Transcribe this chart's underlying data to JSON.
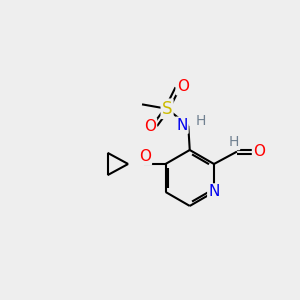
{
  "bg_color": "#eeeeee",
  "bond_color": "#000000",
  "atom_colors": {
    "N": "#0000ee",
    "O": "#ff0000",
    "S": "#ccbb00",
    "H_gray": "#708090",
    "C": "#000000"
  },
  "font_size_atom": 10,
  "fig_size": [
    3.0,
    3.0
  ],
  "dpi": 100
}
